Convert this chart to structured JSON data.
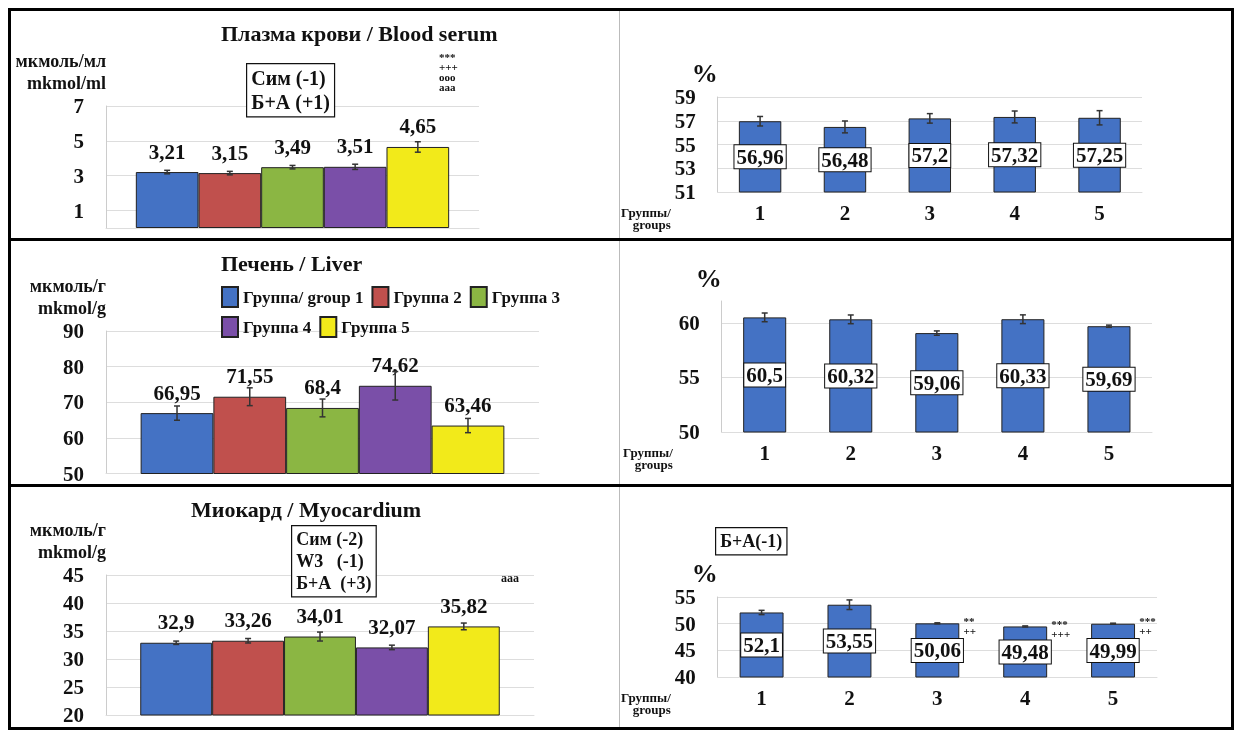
{
  "chart_data": [
    {
      "type": "bar",
      "title": "Плазма крови / Blood serum",
      "ylabel": "мкмоль/мл\nmkmol/ml",
      "categories": [
        null
      ],
      "series": [
        {
          "color": "#4472c4",
          "values": [
            3.21
          ],
          "errors": [
            0.1
          ],
          "value_labels": [
            "3,21"
          ]
        },
        {
          "color": "#c0504d",
          "values": [
            3.15
          ],
          "errors": [
            0.1
          ],
          "value_labels": [
            "3,15"
          ]
        },
        {
          "color": "#8bb643",
          "values": [
            3.49
          ],
          "errors": [
            0.1
          ],
          "value_labels": [
            "3,49"
          ]
        },
        {
          "color": "#7a4fa8",
          "values": [
            3.51
          ],
          "errors": [
            0.15
          ],
          "value_labels": [
            "3,51"
          ]
        },
        {
          "color": "#f2ea1a",
          "values": [
            4.65
          ],
          "errors": [
            0.3
          ],
          "value_labels": [
            "4,65"
          ]
        }
      ],
      "ylim": [
        0,
        7
      ],
      "yticks": [
        1,
        3,
        5,
        7
      ],
      "grid": true,
      "annotations": [
        "Сим (-1)\nБ+А (+1)",
        "***\n+++\nooo\naaa"
      ]
    },
    {
      "type": "bar",
      "ylabel": "%",
      "xlabel": "Группы/\ngroups",
      "categories": [
        "1",
        "2",
        "3",
        "4",
        "5"
      ],
      "color": "#4472c4",
      "values": [
        56.96,
        56.48,
        57.2,
        57.32,
        57.25
      ],
      "errors": [
        0.4,
        0.5,
        0.4,
        0.5,
        0.6
      ],
      "value_labels": [
        "56,96",
        "56,48",
        "57,2",
        "57,32",
        "57,25"
      ],
      "ylim": [
        51,
        59
      ],
      "yticks": [
        51,
        53,
        55,
        57,
        59
      ],
      "grid": true
    },
    {
      "type": "bar",
      "title": "Печень / Liver",
      "ylabel": "мкмоль/г\nmkmol/g",
      "categories": [
        null
      ],
      "series": [
        {
          "name": "Группа/ group 1",
          "color": "#4472c4",
          "values": [
            66.95
          ],
          "errors": [
            2
          ],
          "value_labels": [
            "66,95"
          ]
        },
        {
          "name": "Группа 2",
          "color": "#c0504d",
          "values": [
            71.55
          ],
          "errors": [
            2.5
          ],
          "value_labels": [
            "71,55"
          ]
        },
        {
          "name": "Группа 3",
          "color": "#8bb643",
          "values": [
            68.4
          ],
          "errors": [
            2.5
          ],
          "value_labels": [
            "68,4"
          ]
        },
        {
          "name": "Группа 4",
          "color": "#7a4fa8",
          "values": [
            74.62
          ],
          "errors": [
            4
          ],
          "value_labels": [
            "74,62"
          ]
        },
        {
          "name": "Группа 5",
          "color": "#f2ea1a",
          "values": [
            63.46
          ],
          "errors": [
            2
          ],
          "value_labels": [
            "63,46"
          ]
        }
      ],
      "ylim": [
        50,
        90
      ],
      "yticks": [
        50,
        60,
        70,
        80,
        90
      ],
      "grid": true,
      "legend": "top"
    },
    {
      "type": "bar",
      "ylabel": "%",
      "xlabel": "Группы/\ngroups",
      "categories": [
        "1",
        "2",
        "3",
        "4",
        "5"
      ],
      "color": "#4472c4",
      "values": [
        60.5,
        60.32,
        59.06,
        60.33,
        59.69
      ],
      "errors": [
        0.4,
        0.4,
        0.2,
        0.4,
        0.1
      ],
      "value_labels": [
        "60,5",
        "60,32",
        "59,06",
        "60,33",
        "59,69"
      ],
      "ylim": [
        50,
        62
      ],
      "yticks": [
        50,
        55,
        60
      ],
      "grid": true
    },
    {
      "type": "bar",
      "title": "Миокард / Myocardium",
      "ylabel": "мкмоль/г\nmkmol/g",
      "categories": [
        null
      ],
      "series": [
        {
          "color": "#4472c4",
          "values": [
            32.9
          ],
          "errors": [
            0.3
          ],
          "value_labels": [
            "32,9"
          ]
        },
        {
          "color": "#c0504d",
          "values": [
            33.26
          ],
          "errors": [
            0.4
          ],
          "value_labels": [
            "33,26"
          ]
        },
        {
          "color": "#8bb643",
          "values": [
            34.01
          ],
          "errors": [
            0.8
          ],
          "value_labels": [
            "34,01"
          ]
        },
        {
          "color": "#7a4fa8",
          "values": [
            32.07
          ],
          "errors": [
            0.4
          ],
          "value_labels": [
            "32,07"
          ]
        },
        {
          "color": "#f2ea1a",
          "values": [
            35.82
          ],
          "errors": [
            0.6
          ],
          "value_labels": [
            "35,82"
          ]
        }
      ],
      "ylim": [
        20,
        45
      ],
      "yticks": [
        20,
        25,
        30,
        35,
        40,
        45
      ],
      "grid": true,
      "annotations": [
        "Сим (-2)\nW3   (-1)\nБ+А  (+3)",
        "aaa"
      ]
    },
    {
      "type": "bar",
      "ylabel": "%",
      "xlabel": "Группы/\ngroups",
      "categories": [
        "1",
        "2",
        "3",
        "4",
        "5"
      ],
      "color": "#4472c4",
      "values": [
        52.1,
        53.55,
        50.06,
        49.48,
        49.99
      ],
      "errors": [
        0.4,
        0.9,
        0.1,
        0.1,
        0.1
      ],
      "value_labels": [
        "52,1",
        "53,55",
        "50,06",
        "49,48",
        "49,99"
      ],
      "ylim": [
        40,
        55
      ],
      "yticks": [
        40,
        45,
        50,
        55
      ],
      "grid": true,
      "annotations": [
        "Б+А(-1)",
        {
          "text": "**\n++",
          "x": "3",
          "y": 50.06
        },
        {
          "text": "***\n+++",
          "x": "4",
          "y": 49.48
        },
        {
          "text": "***\n++",
          "x": "5",
          "y": 49.99
        }
      ]
    }
  ]
}
